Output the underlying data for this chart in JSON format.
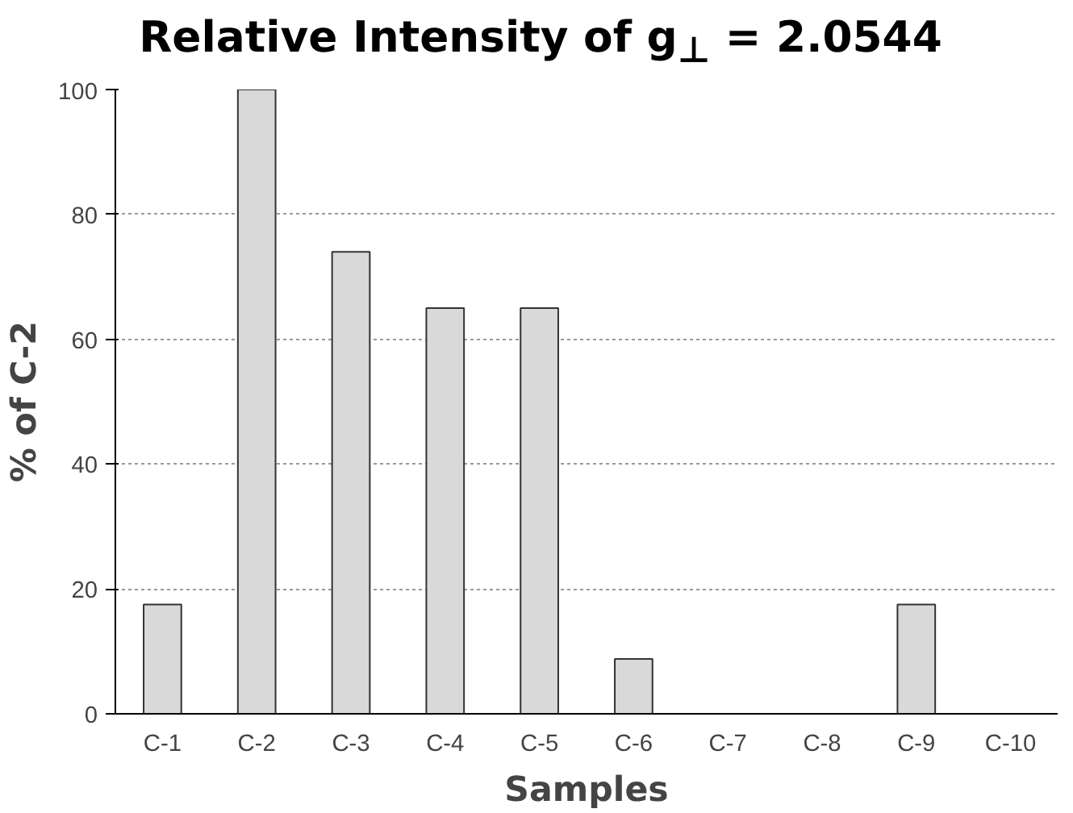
{
  "chart_data": {
    "type": "bar",
    "title": "Relative Intensity of g$_{⊥}$ = 2.0544",
    "xlabel": "Samples",
    "ylabel": "% of C-2",
    "categories": [
      "C-1",
      "C-2",
      "C-3",
      "C-4",
      "C-5",
      "C-6",
      "C-7",
      "C-8",
      "C-9",
      "C-10"
    ],
    "values": [
      17.5,
      100,
      74,
      65,
      65,
      8.8,
      0,
      0,
      17.5,
      0
    ],
    "color": "#d9d9d9",
    "ylim": [
      0,
      100
    ],
    "yticks": [
      0,
      20,
      40,
      60,
      80,
      100
    ],
    "grid": "y"
  }
}
